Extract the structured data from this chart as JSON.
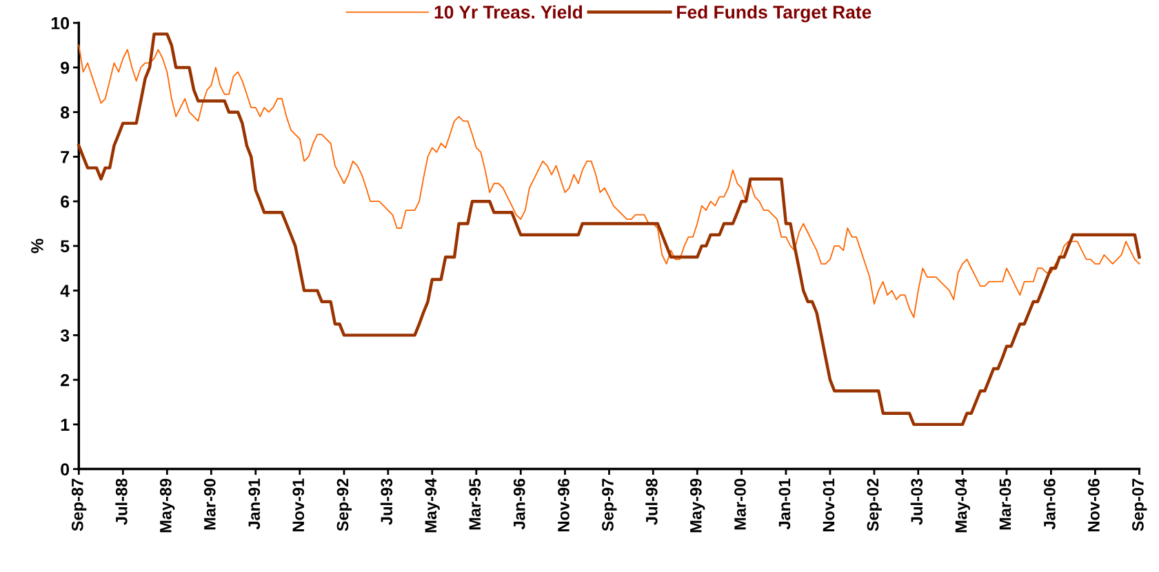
{
  "chart_data": {
    "type": "line",
    "ylabel": "%",
    "legend": "top",
    "grid": false,
    "xlim": [
      "1987-09",
      "2007-09"
    ],
    "ylim": [
      0,
      10
    ],
    "yticks": [
      0,
      1,
      2,
      3,
      4,
      5,
      6,
      7,
      8,
      9,
      10
    ],
    "xticks": [
      {
        "value": "1987-09",
        "label": "Sep-87"
      },
      {
        "value": "1988-07",
        "label": "Jul-88"
      },
      {
        "value": "1989-05",
        "label": "May-89"
      },
      {
        "value": "1990-03",
        "label": "Mar-90"
      },
      {
        "value": "1991-01",
        "label": "Jan-91"
      },
      {
        "value": "1991-11",
        "label": "Nov-91"
      },
      {
        "value": "1992-09",
        "label": "Sep-92"
      },
      {
        "value": "1993-07",
        "label": "Jul-93"
      },
      {
        "value": "1994-05",
        "label": "May-94"
      },
      {
        "value": "1995-03",
        "label": "Mar-95"
      },
      {
        "value": "1996-01",
        "label": "Jan-96"
      },
      {
        "value": "1996-11",
        "label": "Nov-96"
      },
      {
        "value": "1997-09",
        "label": "Sep-97"
      },
      {
        "value": "1998-07",
        "label": "Jul-98"
      },
      {
        "value": "1999-05",
        "label": "May-99"
      },
      {
        "value": "2000-03",
        "label": "Mar-00"
      },
      {
        "value": "2001-01",
        "label": "Jan-01"
      },
      {
        "value": "2001-11",
        "label": "Nov-01"
      },
      {
        "value": "2002-09",
        "label": "Sep-02"
      },
      {
        "value": "2003-07",
        "label": "Jul-03"
      },
      {
        "value": "2004-05",
        "label": "May-04"
      },
      {
        "value": "2005-03",
        "label": "Mar-05"
      },
      {
        "value": "2006-01",
        "label": "Jan-06"
      },
      {
        "value": "2006-11",
        "label": "Nov-06"
      },
      {
        "value": "2007-09",
        "label": "Sep-07"
      }
    ],
    "x": [
      "1987-09",
      "1987-10",
      "1987-11",
      "1987-12",
      "1988-01",
      "1988-02",
      "1988-03",
      "1988-04",
      "1988-05",
      "1988-06",
      "1988-07",
      "1988-08",
      "1988-09",
      "1988-10",
      "1988-11",
      "1988-12",
      "1989-01",
      "1989-02",
      "1989-03",
      "1989-04",
      "1989-05",
      "1989-06",
      "1989-07",
      "1989-08",
      "1989-09",
      "1989-10",
      "1989-11",
      "1989-12",
      "1990-01",
      "1990-02",
      "1990-03",
      "1990-04",
      "1990-05",
      "1990-06",
      "1990-07",
      "1990-08",
      "1990-09",
      "1990-10",
      "1990-11",
      "1990-12",
      "1991-01",
      "1991-02",
      "1991-03",
      "1991-04",
      "1991-05",
      "1991-06",
      "1991-07",
      "1991-08",
      "1991-09",
      "1991-10",
      "1991-11",
      "1991-12",
      "1992-01",
      "1992-02",
      "1992-03",
      "1992-04",
      "1992-05",
      "1992-06",
      "1992-07",
      "1992-08",
      "1992-09",
      "1992-10",
      "1992-11",
      "1992-12",
      "1993-01",
      "1993-02",
      "1993-03",
      "1993-04",
      "1993-05",
      "1993-06",
      "1993-07",
      "1993-08",
      "1993-09",
      "1993-10",
      "1993-11",
      "1993-12",
      "1994-01",
      "1994-02",
      "1994-03",
      "1994-04",
      "1994-05",
      "1994-06",
      "1994-07",
      "1994-08",
      "1994-09",
      "1994-10",
      "1994-11",
      "1994-12",
      "1995-01",
      "1995-02",
      "1995-03",
      "1995-04",
      "1995-05",
      "1995-06",
      "1995-07",
      "1995-08",
      "1995-09",
      "1995-10",
      "1995-11",
      "1995-12",
      "1996-01",
      "1996-02",
      "1996-03",
      "1996-04",
      "1996-05",
      "1996-06",
      "1996-07",
      "1996-08",
      "1996-09",
      "1996-10",
      "1996-11",
      "1996-12",
      "1997-01",
      "1997-02",
      "1997-03",
      "1997-04",
      "1997-05",
      "1997-06",
      "1997-07",
      "1997-08",
      "1997-09",
      "1997-10",
      "1997-11",
      "1997-12",
      "1998-01",
      "1998-02",
      "1998-03",
      "1998-04",
      "1998-05",
      "1998-06",
      "1998-07",
      "1998-08",
      "1998-09",
      "1998-10",
      "1998-11",
      "1998-12",
      "1999-01",
      "1999-02",
      "1999-03",
      "1999-04",
      "1999-05",
      "1999-06",
      "1999-07",
      "1999-08",
      "1999-09",
      "1999-10",
      "1999-11",
      "1999-12",
      "2000-01",
      "2000-02",
      "2000-03",
      "2000-04",
      "2000-05",
      "2000-06",
      "2000-07",
      "2000-08",
      "2000-09",
      "2000-10",
      "2000-11",
      "2000-12",
      "2001-01",
      "2001-02",
      "2001-03",
      "2001-04",
      "2001-05",
      "2001-06",
      "2001-07",
      "2001-08",
      "2001-09",
      "2001-10",
      "2001-11",
      "2001-12",
      "2002-01",
      "2002-02",
      "2002-03",
      "2002-04",
      "2002-05",
      "2002-06",
      "2002-07",
      "2002-08",
      "2002-09",
      "2002-10",
      "2002-11",
      "2002-12",
      "2003-01",
      "2003-02",
      "2003-03",
      "2003-04",
      "2003-05",
      "2003-06",
      "2003-07",
      "2003-08",
      "2003-09",
      "2003-10",
      "2003-11",
      "2003-12",
      "2004-01",
      "2004-02",
      "2004-03",
      "2004-04",
      "2004-05",
      "2004-06",
      "2004-07",
      "2004-08",
      "2004-09",
      "2004-10",
      "2004-11",
      "2004-12",
      "2005-01",
      "2005-02",
      "2005-03",
      "2005-04",
      "2005-05",
      "2005-06",
      "2005-07",
      "2005-08",
      "2005-09",
      "2005-10",
      "2005-11",
      "2005-12",
      "2006-01",
      "2006-02",
      "2006-03",
      "2006-04",
      "2006-05",
      "2006-06",
      "2006-07",
      "2006-08",
      "2006-09",
      "2006-10",
      "2006-11",
      "2006-12",
      "2007-01",
      "2007-02",
      "2007-03",
      "2007-04",
      "2007-05",
      "2007-06",
      "2007-07",
      "2007-08",
      "2007-09"
    ],
    "series": [
      {
        "name": "10 Yr Treas. Yield",
        "color": "#ff6600",
        "values": [
          9.5,
          8.9,
          9.1,
          8.8,
          8.5,
          8.2,
          8.3,
          8.7,
          9.1,
          8.9,
          9.2,
          9.4,
          9.0,
          8.7,
          9.0,
          9.1,
          9.1,
          9.2,
          9.4,
          9.2,
          8.9,
          8.3,
          7.9,
          8.1,
          8.3,
          8.0,
          7.9,
          7.8,
          8.2,
          8.5,
          8.6,
          9.0,
          8.6,
          8.4,
          8.4,
          8.8,
          8.9,
          8.7,
          8.4,
          8.1,
          8.1,
          7.9,
          8.1,
          8.0,
          8.1,
          8.3,
          8.3,
          7.9,
          7.6,
          7.5,
          7.4,
          6.9,
          7.0,
          7.3,
          7.5,
          7.5,
          7.4,
          7.3,
          6.8,
          6.6,
          6.4,
          6.6,
          6.9,
          6.8,
          6.6,
          6.3,
          6.0,
          6.0,
          6.0,
          5.9,
          5.8,
          5.7,
          5.4,
          5.4,
          5.8,
          5.8,
          5.8,
          6.0,
          6.5,
          7.0,
          7.2,
          7.1,
          7.3,
          7.2,
          7.5,
          7.8,
          7.9,
          7.8,
          7.8,
          7.5,
          7.2,
          7.1,
          6.7,
          6.2,
          6.4,
          6.4,
          6.3,
          6.1,
          5.9,
          5.7,
          5.6,
          5.8,
          6.3,
          6.5,
          6.7,
          6.9,
          6.8,
          6.6,
          6.8,
          6.5,
          6.2,
          6.3,
          6.6,
          6.4,
          6.7,
          6.9,
          6.9,
          6.6,
          6.2,
          6.3,
          6.1,
          5.9,
          5.8,
          5.7,
          5.6,
          5.6,
          5.7,
          5.7,
          5.7,
          5.5,
          5.5,
          5.4,
          4.8,
          4.6,
          4.9,
          4.7,
          4.7,
          5.0,
          5.2,
          5.2,
          5.5,
          5.9,
          5.8,
          6.0,
          5.9,
          6.1,
          6.1,
          6.3,
          6.7,
          6.4,
          6.3,
          6.0,
          6.4,
          6.1,
          6.0,
          5.8,
          5.8,
          5.7,
          5.6,
          5.2,
          5.2,
          5.0,
          4.9,
          5.3,
          5.5,
          5.3,
          5.1,
          4.9,
          4.6,
          4.6,
          4.7,
          5.0,
          5.0,
          4.9,
          5.4,
          5.2,
          5.2,
          4.9,
          4.6,
          4.3,
          3.7,
          4.0,
          4.2,
          3.9,
          4.0,
          3.8,
          3.9,
          3.9,
          3.6,
          3.4,
          4.0,
          4.5,
          4.3,
          4.3,
          4.3,
          4.2,
          4.1,
          4.0,
          3.8,
          4.4,
          4.6,
          4.7,
          4.5,
          4.3,
          4.1,
          4.1,
          4.2,
          4.2,
          4.2,
          4.2,
          4.5,
          4.3,
          4.1,
          3.9,
          4.2,
          4.2,
          4.2,
          4.5,
          4.5,
          4.4,
          4.4,
          4.6,
          4.7,
          5.0,
          5.1,
          5.1,
          5.1,
          4.9,
          4.7,
          4.7,
          4.6,
          4.6,
          4.8,
          4.7,
          4.6,
          4.7,
          4.8,
          5.1,
          4.9,
          4.7,
          4.6
        ]
      },
      {
        "name": "Fed Funds Target Rate",
        "color": "#993300",
        "values": [
          7.25,
          7.0,
          6.75,
          6.75,
          6.75,
          6.5,
          6.75,
          6.75,
          7.25,
          7.5,
          7.75,
          7.75,
          7.75,
          7.75,
          8.25,
          8.75,
          9.0,
          9.75,
          9.75,
          9.75,
          9.75,
          9.5,
          9.0,
          9.0,
          9.0,
          9.0,
          8.5,
          8.25,
          8.25,
          8.25,
          8.25,
          8.25,
          8.25,
          8.25,
          8.0,
          8.0,
          8.0,
          7.75,
          7.25,
          7.0,
          6.25,
          6.0,
          5.75,
          5.75,
          5.75,
          5.75,
          5.75,
          5.5,
          5.25,
          5.0,
          4.5,
          4.0,
          4.0,
          4.0,
          4.0,
          3.75,
          3.75,
          3.75,
          3.25,
          3.25,
          3.0,
          3.0,
          3.0,
          3.0,
          3.0,
          3.0,
          3.0,
          3.0,
          3.0,
          3.0,
          3.0,
          3.0,
          3.0,
          3.0,
          3.0,
          3.0,
          3.0,
          3.25,
          3.5,
          3.75,
          4.25,
          4.25,
          4.25,
          4.75,
          4.75,
          4.75,
          5.5,
          5.5,
          5.5,
          6.0,
          6.0,
          6.0,
          6.0,
          6.0,
          5.75,
          5.75,
          5.75,
          5.75,
          5.75,
          5.5,
          5.25,
          5.25,
          5.25,
          5.25,
          5.25,
          5.25,
          5.25,
          5.25,
          5.25,
          5.25,
          5.25,
          5.25,
          5.25,
          5.25,
          5.5,
          5.5,
          5.5,
          5.5,
          5.5,
          5.5,
          5.5,
          5.5,
          5.5,
          5.5,
          5.5,
          5.5,
          5.5,
          5.5,
          5.5,
          5.5,
          5.5,
          5.5,
          5.25,
          5.0,
          4.75,
          4.75,
          4.75,
          4.75,
          4.75,
          4.75,
          4.75,
          5.0,
          5.0,
          5.25,
          5.25,
          5.25,
          5.5,
          5.5,
          5.5,
          5.75,
          6.0,
          6.0,
          6.5,
          6.5,
          6.5,
          6.5,
          6.5,
          6.5,
          6.5,
          6.5,
          5.5,
          5.5,
          5.0,
          4.5,
          4.0,
          3.75,
          3.75,
          3.5,
          3.0,
          2.5,
          2.0,
          1.75,
          1.75,
          1.75,
          1.75,
          1.75,
          1.75,
          1.75,
          1.75,
          1.75,
          1.75,
          1.75,
          1.25,
          1.25,
          1.25,
          1.25,
          1.25,
          1.25,
          1.25,
          1.0,
          1.0,
          1.0,
          1.0,
          1.0,
          1.0,
          1.0,
          1.0,
          1.0,
          1.0,
          1.0,
          1.0,
          1.25,
          1.25,
          1.5,
          1.75,
          1.75,
          2.0,
          2.25,
          2.25,
          2.5,
          2.75,
          2.75,
          3.0,
          3.25,
          3.25,
          3.5,
          3.75,
          3.75,
          4.0,
          4.25,
          4.5,
          4.5,
          4.75,
          4.75,
          5.0,
          5.25,
          5.25,
          5.25,
          5.25,
          5.25,
          5.25,
          5.25,
          5.25,
          5.25,
          5.25,
          5.25,
          5.25,
          5.25,
          5.25,
          5.25,
          4.75
        ]
      }
    ]
  }
}
